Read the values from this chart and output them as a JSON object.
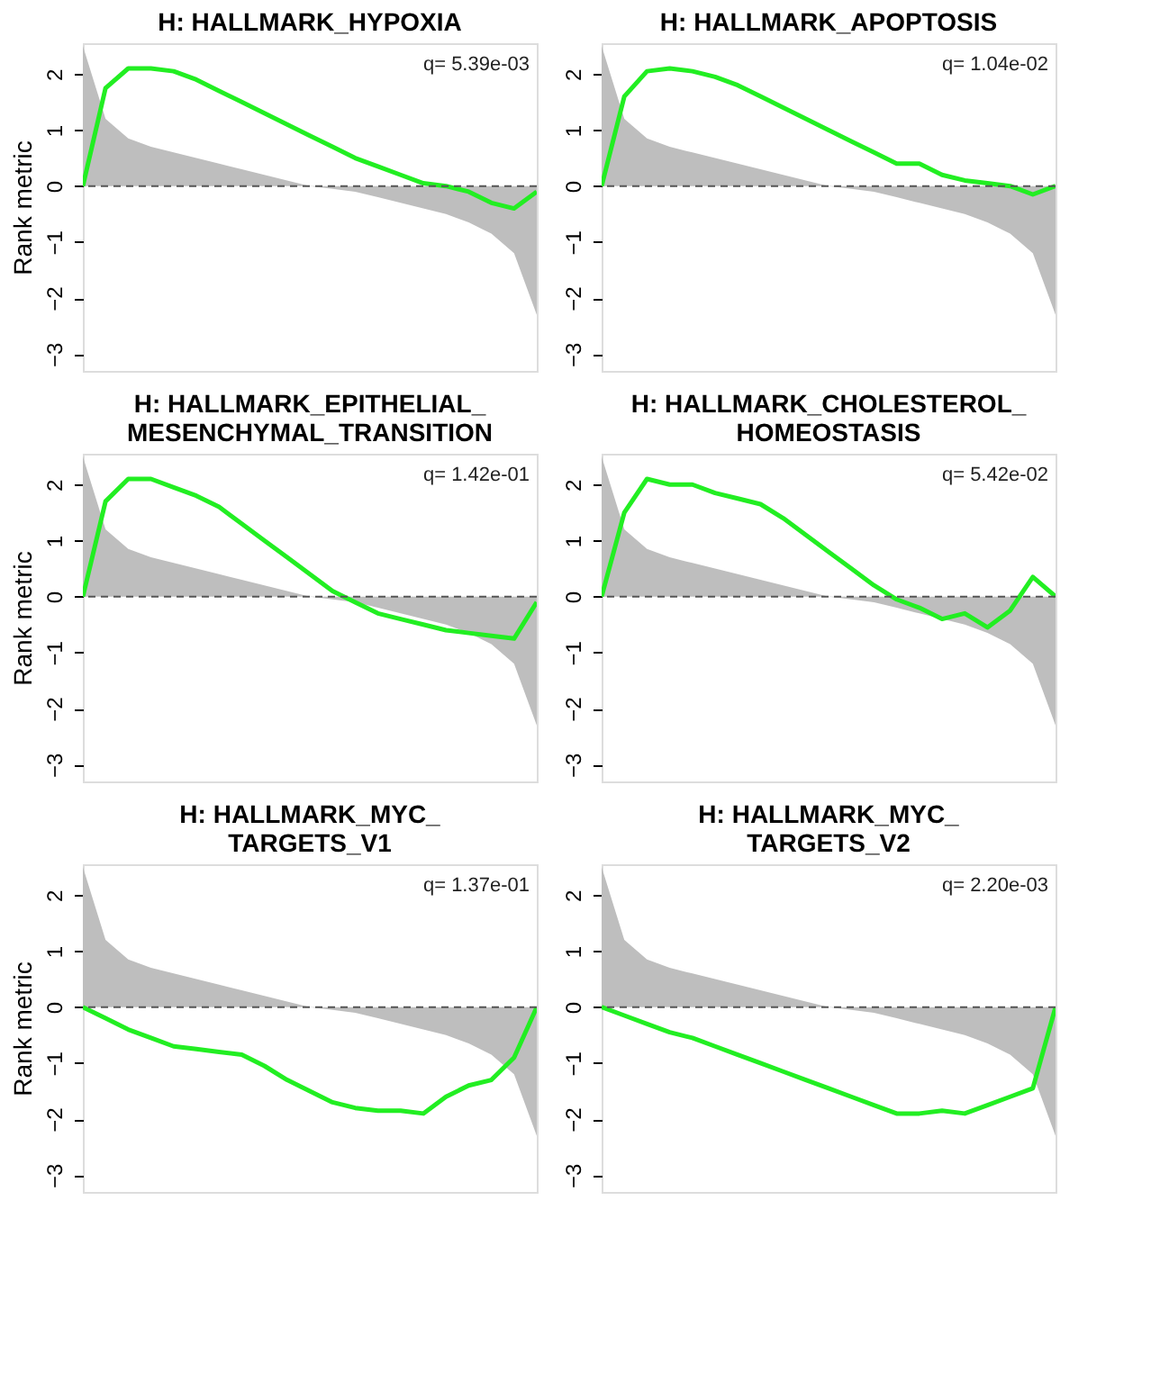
{
  "chart_data": [
    {
      "type": "line",
      "title": "H: HALLMARK_HYPOXIA",
      "ylabel": "Rank metric",
      "categories": [
        null,
        null,
        null,
        null,
        null,
        null,
        null,
        null,
        null,
        null,
        null,
        null,
        null,
        null,
        null,
        null,
        null,
        null,
        null,
        null,
        null
      ],
      "ylim": [
        -3.3,
        2.55
      ],
      "yticks": [
        -3,
        -2,
        -1,
        0,
        1,
        2
      ],
      "tick_labels": "y",
      "annotations": [
        "q= 5.39e-03"
      ],
      "ref_lines": [
        {
          "axis": "y",
          "value": 0,
          "line_style": "dashed",
          "color": "#555555"
        }
      ],
      "series": [
        {
          "type": "area",
          "color": "#bebebe",
          "values": [
            2.5,
            1.2,
            0.85,
            0.7,
            0.6,
            0.5,
            0.4,
            0.3,
            0.2,
            0.1,
            0.0,
            -0.05,
            -0.1,
            -0.2,
            -0.3,
            -0.4,
            -0.5,
            -0.65,
            -0.85,
            -1.2,
            -2.3
          ]
        },
        {
          "type": "line",
          "color": "#22ee22",
          "values": [
            0,
            1.75,
            2.1,
            2.1,
            2.05,
            1.9,
            1.7,
            1.5,
            1.3,
            1.1,
            0.9,
            0.7,
            0.5,
            0.35,
            0.2,
            0.05,
            0.0,
            -0.1,
            -0.3,
            -0.4,
            -0.1
          ]
        }
      ]
    },
    {
      "type": "line",
      "title": "H: HALLMARK_APOPTOSIS",
      "categories": [
        null,
        null,
        null,
        null,
        null,
        null,
        null,
        null,
        null,
        null,
        null,
        null,
        null,
        null,
        null,
        null,
        null,
        null,
        null,
        null,
        null
      ],
      "ylim": [
        -3.3,
        2.55
      ],
      "yticks": [
        -3,
        -2,
        -1,
        0,
        1,
        2
      ],
      "tick_labels": "y",
      "annotations": [
        "q= 1.04e-02"
      ],
      "ref_lines": [
        {
          "axis": "y",
          "value": 0,
          "line_style": "dashed",
          "color": "#555555"
        }
      ],
      "series": [
        {
          "type": "area",
          "color": "#bebebe",
          "values": [
            2.5,
            1.2,
            0.85,
            0.7,
            0.6,
            0.5,
            0.4,
            0.3,
            0.2,
            0.1,
            0.0,
            -0.05,
            -0.1,
            -0.2,
            -0.3,
            -0.4,
            -0.5,
            -0.65,
            -0.85,
            -1.2,
            -2.3
          ]
        },
        {
          "type": "line",
          "color": "#22ee22",
          "values": [
            0,
            1.6,
            2.05,
            2.1,
            2.05,
            1.95,
            1.8,
            1.6,
            1.4,
            1.2,
            1.0,
            0.8,
            0.6,
            0.4,
            0.4,
            0.2,
            0.1,
            0.05,
            0,
            -0.15,
            0
          ]
        }
      ]
    },
    {
      "type": "line",
      "title": "H: HALLMARK_EPITHELIAL_\nMESENCHYMAL_TRANSITION",
      "ylabel": "Rank metric",
      "categories": [
        null,
        null,
        null,
        null,
        null,
        null,
        null,
        null,
        null,
        null,
        null,
        null,
        null,
        null,
        null,
        null,
        null,
        null,
        null,
        null,
        null
      ],
      "ylim": [
        -3.3,
        2.55
      ],
      "yticks": [
        -3,
        -2,
        -1,
        0,
        1,
        2
      ],
      "tick_labels": "y",
      "annotations": [
        "q= 1.42e-01"
      ],
      "ref_lines": [
        {
          "axis": "y",
          "value": 0,
          "line_style": "dashed",
          "color": "#555555"
        }
      ],
      "series": [
        {
          "type": "area",
          "color": "#bebebe",
          "values": [
            2.5,
            1.2,
            0.85,
            0.7,
            0.6,
            0.5,
            0.4,
            0.3,
            0.2,
            0.1,
            0.0,
            -0.05,
            -0.1,
            -0.2,
            -0.3,
            -0.4,
            -0.5,
            -0.65,
            -0.85,
            -1.2,
            -2.3
          ]
        },
        {
          "type": "line",
          "color": "#22ee22",
          "values": [
            0,
            1.7,
            2.1,
            2.1,
            1.95,
            1.8,
            1.6,
            1.3,
            1.0,
            0.7,
            0.4,
            0.1,
            -0.1,
            -0.3,
            -0.4,
            -0.5,
            -0.6,
            -0.65,
            -0.7,
            -0.75,
            -0.1
          ]
        }
      ]
    },
    {
      "type": "line",
      "title": "H: HALLMARK_CHOLESTEROL_\nHOMEOSTASIS",
      "categories": [
        null,
        null,
        null,
        null,
        null,
        null,
        null,
        null,
        null,
        null,
        null,
        null,
        null,
        null,
        null,
        null,
        null,
        null,
        null,
        null,
        null
      ],
      "ylim": [
        -3.3,
        2.55
      ],
      "yticks": [
        -3,
        -2,
        -1,
        0,
        1,
        2
      ],
      "tick_labels": "y",
      "annotations": [
        "q= 5.42e-02"
      ],
      "ref_lines": [
        {
          "axis": "y",
          "value": 0,
          "line_style": "dashed",
          "color": "#555555"
        }
      ],
      "series": [
        {
          "type": "area",
          "color": "#bebebe",
          "values": [
            2.5,
            1.2,
            0.85,
            0.7,
            0.6,
            0.5,
            0.4,
            0.3,
            0.2,
            0.1,
            0.0,
            -0.05,
            -0.1,
            -0.2,
            -0.3,
            -0.4,
            -0.5,
            -0.65,
            -0.85,
            -1.2,
            -2.3
          ]
        },
        {
          "type": "line",
          "color": "#22ee22",
          "values": [
            0,
            1.5,
            2.1,
            2.0,
            2.0,
            1.85,
            1.75,
            1.65,
            1.4,
            1.1,
            0.8,
            0.5,
            0.2,
            -0.05,
            -0.2,
            -0.4,
            -0.3,
            -0.55,
            -0.25,
            0.35,
            0
          ]
        }
      ]
    },
    {
      "type": "line",
      "title": "H: HALLMARK_MYC_\nTARGETS_V1",
      "ylabel": "Rank metric",
      "categories": [
        null,
        null,
        null,
        null,
        null,
        null,
        null,
        null,
        null,
        null,
        null,
        null,
        null,
        null,
        null,
        null,
        null,
        null,
        null,
        null,
        null
      ],
      "ylim": [
        -3.3,
        2.55
      ],
      "yticks": [
        -3,
        -2,
        -1,
        0,
        1,
        2
      ],
      "tick_labels": "y",
      "annotations": [
        "q= 1.37e-01"
      ],
      "ref_lines": [
        {
          "axis": "y",
          "value": 0,
          "line_style": "dashed",
          "color": "#555555"
        }
      ],
      "series": [
        {
          "type": "area",
          "color": "#bebebe",
          "values": [
            2.5,
            1.2,
            0.85,
            0.7,
            0.6,
            0.5,
            0.4,
            0.3,
            0.2,
            0.1,
            0.0,
            -0.05,
            -0.1,
            -0.2,
            -0.3,
            -0.4,
            -0.5,
            -0.65,
            -0.85,
            -1.2,
            -2.3
          ]
        },
        {
          "type": "line",
          "color": "#22ee22",
          "values": [
            0,
            -0.2,
            -0.4,
            -0.55,
            -0.7,
            -0.75,
            -0.8,
            -0.85,
            -1.05,
            -1.3,
            -1.5,
            -1.7,
            -1.8,
            -1.85,
            -1.85,
            -1.9,
            -1.6,
            -1.4,
            -1.3,
            -0.9,
            0
          ]
        }
      ]
    },
    {
      "type": "line",
      "title": "H: HALLMARK_MYC_\nTARGETS_V2",
      "categories": [
        null,
        null,
        null,
        null,
        null,
        null,
        null,
        null,
        null,
        null,
        null,
        null,
        null,
        null,
        null,
        null,
        null,
        null,
        null,
        null,
        null
      ],
      "ylim": [
        -3.3,
        2.55
      ],
      "yticks": [
        -3,
        -2,
        -1,
        0,
        1,
        2
      ],
      "tick_labels": "y",
      "annotations": [
        "q= 2.20e-03"
      ],
      "ref_lines": [
        {
          "axis": "y",
          "value": 0,
          "line_style": "dashed",
          "color": "#555555"
        }
      ],
      "series": [
        {
          "type": "area",
          "color": "#bebebe",
          "values": [
            2.5,
            1.2,
            0.85,
            0.7,
            0.6,
            0.5,
            0.4,
            0.3,
            0.2,
            0.1,
            0.0,
            -0.05,
            -0.1,
            -0.2,
            -0.3,
            -0.4,
            -0.5,
            -0.65,
            -0.85,
            -1.2,
            -2.3
          ]
        },
        {
          "type": "line",
          "color": "#22ee22",
          "values": [
            0,
            -0.15,
            -0.3,
            -0.45,
            -0.55,
            -0.7,
            -0.85,
            -1.0,
            -1.15,
            -1.3,
            -1.45,
            -1.6,
            -1.75,
            -1.9,
            -1.9,
            -1.85,
            -1.9,
            -1.75,
            -1.6,
            -1.45,
            0
          ]
        }
      ]
    }
  ]
}
